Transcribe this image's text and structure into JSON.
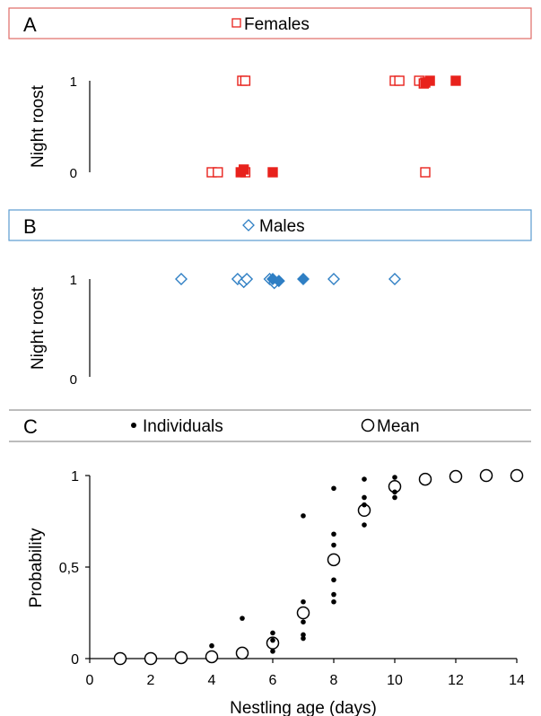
{
  "chart_data": [
    {
      "type": "scatter",
      "panel_letter": "A",
      "legend": {
        "marker": "open-square",
        "label": "Females",
        "color": "#e8221c"
      },
      "ylabel": "Night roost",
      "yticks": [
        "0",
        "1"
      ],
      "xlim": [
        0,
        14
      ],
      "series": [
        {
          "fill": "open",
          "points": [
            [
              5,
              1
            ],
            [
              5.1,
              1
            ],
            [
              4,
              0
            ],
            [
              4.2,
              0
            ],
            [
              5.1,
              0
            ],
            [
              10,
              1
            ],
            [
              10.15,
              1
            ],
            [
              10.8,
              1
            ],
            [
              10.95,
              0.97
            ],
            [
              11,
              0
            ]
          ]
        },
        {
          "fill": "filled",
          "points": [
            [
              4.95,
              0
            ],
            [
              5.05,
              0.03
            ],
            [
              6,
              0
            ],
            [
              11,
              0.98
            ],
            [
              11.15,
              1
            ],
            [
              12,
              1
            ]
          ]
        }
      ]
    },
    {
      "type": "scatter",
      "panel_letter": "B",
      "legend": {
        "marker": "open-diamond",
        "label": "Males",
        "color": "#2f7fc4"
      },
      "ylabel": "Night roost",
      "yticks": [
        "0",
        "1"
      ],
      "xlim": [
        0,
        14
      ],
      "series": [
        {
          "fill": "open",
          "points": [
            [
              3,
              1
            ],
            [
              4.85,
              1
            ],
            [
              5.05,
              0.97
            ],
            [
              5.15,
              1
            ],
            [
              5.9,
              1
            ],
            [
              6.05,
              0.96
            ],
            [
              8,
              1
            ],
            [
              10,
              1
            ]
          ]
        },
        {
          "fill": "filled",
          "points": [
            [
              6,
              1
            ],
            [
              6.2,
              0.98
            ],
            [
              7,
              1
            ]
          ]
        }
      ]
    },
    {
      "type": "scatter",
      "panel_letter": "C",
      "legend": [
        {
          "marker": "dot",
          "label": "Individuals"
        },
        {
          "marker": "open-circle",
          "label": "Mean"
        }
      ],
      "xlabel": "Nestling age (days)",
      "ylabel": "Probability",
      "xlim": [
        0,
        14
      ],
      "ylim": [
        0,
        1
      ],
      "xticks": [
        "0",
        "2",
        "4",
        "6",
        "8",
        "10",
        "12",
        "14"
      ],
      "yticks": [
        "0",
        "0,5",
        "1"
      ],
      "series": [
        {
          "name": "Individuals",
          "points": [
            [
              4,
              0.07
            ],
            [
              5,
              0.22
            ],
            [
              6,
              0.14
            ],
            [
              6,
              0.1
            ],
            [
              6,
              0.04
            ],
            [
              7,
              0.78
            ],
            [
              7,
              0.31
            ],
            [
              7,
              0.2
            ],
            [
              7,
              0.13
            ],
            [
              7,
              0.11
            ],
            [
              8,
              0.93
            ],
            [
              8,
              0.68
            ],
            [
              8,
              0.62
            ],
            [
              8,
              0.43
            ],
            [
              8,
              0.35
            ],
            [
              8,
              0.31
            ],
            [
              9,
              0.98
            ],
            [
              9,
              0.88
            ],
            [
              9,
              0.84
            ],
            [
              9,
              0.73
            ],
            [
              10,
              0.99
            ],
            [
              10,
              0.91
            ],
            [
              10,
              0.88
            ]
          ]
        },
        {
          "name": "Mean",
          "points": [
            [
              1,
              0
            ],
            [
              2,
              0
            ],
            [
              3,
              0.005
            ],
            [
              4,
              0.01
            ],
            [
              5,
              0.03
            ],
            [
              6,
              0.085
            ],
            [
              7,
              0.25
            ],
            [
              8,
              0.54
            ],
            [
              9,
              0.81
            ],
            [
              10,
              0.94
            ],
            [
              11,
              0.98
            ],
            [
              12,
              0.995
            ],
            [
              13,
              1
            ],
            [
              14,
              1
            ]
          ]
        }
      ]
    }
  ]
}
